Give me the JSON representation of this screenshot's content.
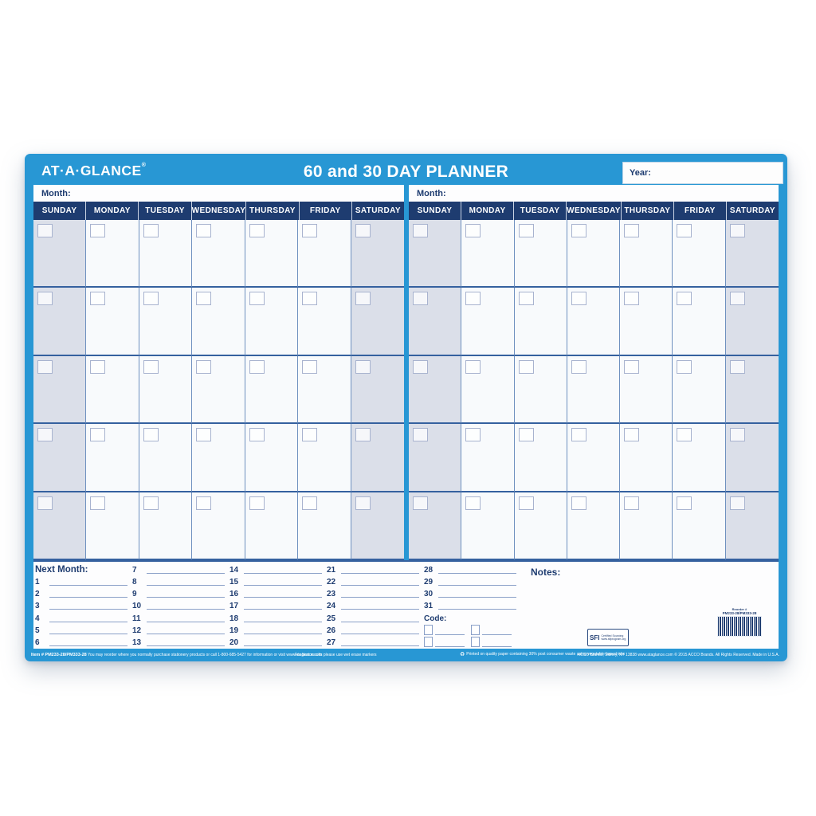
{
  "header": {
    "brand": "AT·A·GLANCE",
    "brand_mark": "®",
    "title": "60 and 30 DAY PLANNER",
    "year_label": "Year:"
  },
  "grid": {
    "month_label": "Month:",
    "day_headers": [
      "SUNDAY",
      "MONDAY",
      "TUESDAY",
      "WEDNESDAY",
      "THURSDAY",
      "FRIDAY",
      "SATURDAY"
    ],
    "weeks": 5,
    "panels": 2
  },
  "next_month": {
    "label": "Next Month:",
    "col1": [
      "1",
      "2",
      "3",
      "4",
      "5",
      "6"
    ],
    "col2": [
      "7",
      "8",
      "9",
      "10",
      "11",
      "12",
      "13"
    ],
    "col3": [
      "14",
      "15",
      "16",
      "17",
      "18",
      "19",
      "20"
    ],
    "col4": [
      "21",
      "22",
      "23",
      "24",
      "25",
      "26",
      "27"
    ],
    "col5": [
      "28",
      "29",
      "30",
      "31"
    ],
    "code_label": "Code:",
    "notes_label": "Notes:"
  },
  "certification": {
    "sfi_label": "SFI",
    "sfi_line1": "Certified Sourcing",
    "sfi_line2": "www.sfiprogram.org"
  },
  "barcode": {
    "line1": "Reorder #",
    "line2": "PM233-28/PM333-28"
  },
  "footer": {
    "item_number": "Item # PM233-28/PM333-28",
    "reorder_text": "You may reorder where you normally purchase stationery products or call 1-800-685-5427 for information or visit www.ataglance.com",
    "center_text": "For best results please use wet erase markers",
    "recycle_icon": "♻",
    "recycle_text": "Printed on quality paper containing 30% post consumer waste using vegetable based inks",
    "address_text": "ACCO Brands, Sidney, NY 13838   www.ataglance.com   © 2015 ACCO Brands. All Rights Reserved.   Made in U.S.A."
  },
  "colors": {
    "frame_blue": "#2897d4",
    "navy": "#1e3c70",
    "weekend_shade": "#dbdfe9",
    "grid_line_col": "#6e90bf",
    "grid_line_row": "#35619f"
  }
}
